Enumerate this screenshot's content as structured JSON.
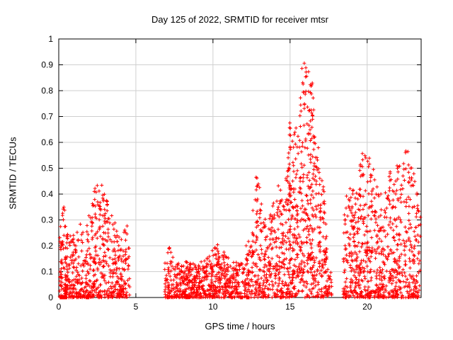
{
  "chart_data": {
    "type": "scatter",
    "title": "Day 125 of 2022, SRMTID for receiver mtsr",
    "xlabel": "GPS time / hours",
    "ylabel": "SRMTID / TECUs",
    "xlim": [
      0,
      23.5
    ],
    "ylim": [
      0,
      1
    ],
    "xticks": {
      "values": [
        0,
        5,
        10,
        15,
        20
      ],
      "labels": [
        "0",
        "5",
        "10",
        "15",
        "20"
      ]
    },
    "yticks": {
      "values": [
        0,
        0.1,
        0.2,
        0.3,
        0.4,
        0.5,
        0.6,
        0.7,
        0.8,
        0.9,
        1
      ],
      "labels": [
        "0",
        "0.1",
        "0.2",
        "0.3",
        "0.4",
        "0.5",
        "0.6",
        "0.7",
        "0.8",
        "0.9",
        "1"
      ]
    },
    "grid": true,
    "legend": "none",
    "marker": "plus",
    "marker_color": "#ff0000",
    "grid_color": "#cfcfcf",
    "axis_color": "#000000",
    "seed": 20220125,
    "series_note": "single red scatter series; dense TID activity clusters with gaps 4.6-6.8h and 17.7-18.4h; peak 0.95 TECUs near 16h",
    "zero_runs": [
      [
        0.08,
        0.38,
        26
      ],
      [
        11.78,
        11.92,
        10
      ],
      [
        12.18,
        12.42,
        14
      ],
      [
        14.34,
        14.44,
        8
      ],
      [
        18.56,
        18.64,
        6
      ]
    ],
    "clusters": [
      {
        "x0": 0.05,
        "x1": 0.6,
        "n": 120,
        "bias": 2.0,
        "env": [
          [
            0.05,
            0.22
          ],
          [
            0.15,
            0.3
          ],
          [
            0.3,
            0.45
          ],
          [
            0.45,
            0.3
          ],
          [
            0.6,
            0.24
          ]
        ]
      },
      {
        "x0": 0.6,
        "x1": 2.2,
        "n": 210,
        "bias": 2.0,
        "env": [
          [
            0.6,
            0.26
          ],
          [
            1.0,
            0.24
          ],
          [
            1.5,
            0.3
          ],
          [
            2.0,
            0.34
          ],
          [
            2.2,
            0.4
          ]
        ]
      },
      {
        "x0": 2.2,
        "x1": 3.6,
        "n": 210,
        "bias": 1.8,
        "env": [
          [
            2.2,
            0.4
          ],
          [
            2.6,
            0.46
          ],
          [
            3.0,
            0.42
          ],
          [
            3.3,
            0.34
          ],
          [
            3.6,
            0.3
          ]
        ]
      },
      {
        "x0": 3.6,
        "x1": 4.6,
        "n": 130,
        "bias": 1.9,
        "env": [
          [
            3.6,
            0.3
          ],
          [
            4.0,
            0.22
          ],
          [
            4.3,
            0.28
          ],
          [
            4.6,
            0.28
          ]
        ]
      },
      {
        "x0": 6.85,
        "x1": 7.6,
        "n": 80,
        "bias": 1.8,
        "env": [
          [
            6.85,
            0.12
          ],
          [
            7.1,
            0.22
          ],
          [
            7.4,
            0.16
          ],
          [
            7.6,
            0.13
          ]
        ]
      },
      {
        "x0": 7.6,
        "x1": 9.8,
        "n": 300,
        "bias": 1.6,
        "env": [
          [
            7.6,
            0.13
          ],
          [
            8.3,
            0.14
          ],
          [
            9.0,
            0.13
          ],
          [
            9.8,
            0.16
          ]
        ]
      },
      {
        "x0": 9.8,
        "x1": 11.9,
        "n": 260,
        "bias": 1.6,
        "env": [
          [
            9.8,
            0.18
          ],
          [
            10.3,
            0.21
          ],
          [
            10.9,
            0.16
          ],
          [
            11.5,
            0.14
          ],
          [
            11.9,
            0.13
          ]
        ]
      },
      {
        "x0": 11.9,
        "x1": 12.5,
        "n": 60,
        "bias": 1.5,
        "env": [
          [
            11.9,
            0.18
          ],
          [
            12.2,
            0.22
          ],
          [
            12.5,
            0.26
          ]
        ]
      },
      {
        "x0": 12.5,
        "x1": 13.2,
        "n": 100,
        "bias": 1.5,
        "env": [
          [
            12.5,
            0.3
          ],
          [
            12.7,
            0.5
          ],
          [
            13.0,
            0.44
          ],
          [
            13.2,
            0.36
          ]
        ]
      },
      {
        "x0": 13.2,
        "x1": 14.65,
        "n": 200,
        "bias": 1.7,
        "env": [
          [
            13.2,
            0.34
          ],
          [
            13.6,
            0.3
          ],
          [
            14.0,
            0.38
          ],
          [
            14.3,
            0.46
          ],
          [
            14.65,
            0.36
          ]
        ]
      },
      {
        "x0": 14.7,
        "x1": 15.5,
        "n": 180,
        "bias": 1.5,
        "env": [
          [
            14.7,
            0.45
          ],
          [
            15.0,
            0.7
          ],
          [
            15.2,
            0.62
          ],
          [
            15.5,
            0.68
          ]
        ]
      },
      {
        "x0": 15.5,
        "x1": 16.6,
        "n": 240,
        "bias": 1.4,
        "env": [
          [
            15.5,
            0.78
          ],
          [
            15.9,
            0.95
          ],
          [
            16.1,
            0.92
          ],
          [
            16.4,
            0.86
          ],
          [
            16.6,
            0.72
          ]
        ]
      },
      {
        "x0": 16.6,
        "x1": 17.4,
        "n": 130,
        "bias": 1.6,
        "env": [
          [
            16.6,
            0.66
          ],
          [
            16.9,
            0.6
          ],
          [
            17.2,
            0.42
          ],
          [
            17.4,
            0.22
          ]
        ]
      },
      {
        "x0": 17.4,
        "x1": 17.7,
        "n": 25,
        "bias": 1.5,
        "env": [
          [
            17.4,
            0.13
          ],
          [
            17.7,
            0.09
          ]
        ]
      },
      {
        "x0": 18.45,
        "x1": 19.4,
        "n": 150,
        "bias": 1.7,
        "env": [
          [
            18.45,
            0.3
          ],
          [
            18.8,
            0.46
          ],
          [
            19.1,
            0.42
          ],
          [
            19.4,
            0.4
          ]
        ]
      },
      {
        "x0": 19.4,
        "x1": 20.6,
        "n": 200,
        "bias": 1.7,
        "env": [
          [
            19.4,
            0.46
          ],
          [
            19.8,
            0.6
          ],
          [
            20.2,
            0.56
          ],
          [
            20.6,
            0.5
          ]
        ]
      },
      {
        "x0": 20.6,
        "x1": 21.9,
        "n": 200,
        "bias": 1.8,
        "env": [
          [
            20.6,
            0.46
          ],
          [
            21.1,
            0.4
          ],
          [
            21.5,
            0.5
          ],
          [
            21.9,
            0.46
          ]
        ]
      },
      {
        "x0": 21.9,
        "x1": 23.45,
        "n": 230,
        "bias": 1.8,
        "env": [
          [
            21.9,
            0.5
          ],
          [
            22.3,
            0.6
          ],
          [
            22.8,
            0.56
          ],
          [
            23.2,
            0.42
          ],
          [
            23.45,
            0.36
          ]
        ]
      }
    ]
  }
}
